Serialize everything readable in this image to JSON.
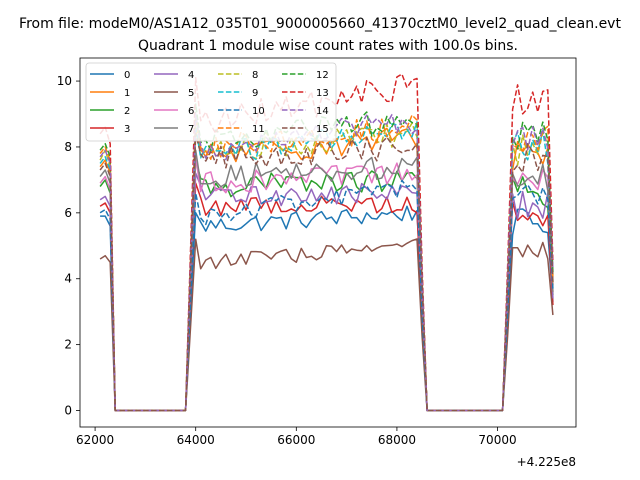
{
  "figure": {
    "suptitle": "From file: modeM0/AS1A12_035T01_9000005660_41370cztM0_level2_quad_clean.evt",
    "title": "Quadrant 1 module wise count rates with 100.0s bins.",
    "offset_text": "+4.225e8"
  },
  "chart_data": {
    "type": "line",
    "title": "Quadrant 1 module wise count rates with 100.0s bins.",
    "xlabel": "",
    "ylabel": "",
    "x_offset": 422500000,
    "xlim": [
      61700,
      71560
    ],
    "ylim": [
      -0.5,
      10.7
    ],
    "xticks": [
      62000,
      64000,
      66000,
      68000,
      70000
    ],
    "yticks": [
      0,
      2,
      4,
      6,
      8,
      10
    ],
    "grid": false,
    "legend": {
      "placement": "top-left",
      "columns": 4
    },
    "segments": [
      {
        "x0": 62100,
        "x1": 62300,
        "gap_to": 63800
      },
      {
        "x0": 63900,
        "x1": 68500,
        "gap_to": 70100
      },
      {
        "x0": 70200,
        "x1": 71100
      }
    ],
    "series": [
      {
        "name": "0",
        "color": "#1f77b4",
        "dash": false,
        "start": [
          5.9,
          5.9,
          5.6
        ],
        "mid": 5.6,
        "peak": 6.0,
        "end_level": 6.0,
        "tail": 3.3
      },
      {
        "name": "1",
        "color": "#ff7f0e",
        "dash": false,
        "start": [
          7.4,
          7.6,
          7.2
        ],
        "mid": 7.7,
        "peak": 8.5,
        "end_level": 8.3,
        "tail": 3.8
      },
      {
        "name": "2",
        "color": "#2ca02c",
        "dash": false,
        "start": [
          6.8,
          7.0,
          6.6
        ],
        "mid": 6.8,
        "peak": 7.6,
        "end_level": 7.0,
        "tail": 3.5
      },
      {
        "name": "3",
        "color": "#d62728",
        "dash": false,
        "start": [
          6.2,
          6.3,
          6.0
        ],
        "mid": 6.2,
        "peak": 6.9,
        "end_level": 6.3,
        "tail": 3.2
      },
      {
        "name": "4",
        "color": "#9467bd",
        "dash": false,
        "start": [
          6.4,
          6.5,
          6.2
        ],
        "mid": 6.5,
        "peak": 7.2,
        "end_level": 6.6,
        "tail": 3.4
      },
      {
        "name": "5",
        "color": "#8c564b",
        "dash": false,
        "start": [
          4.6,
          4.7,
          4.5
        ],
        "mid": 4.5,
        "peak": 5.2,
        "end_level": 5.0,
        "tail": 2.9
      },
      {
        "name": "6",
        "color": "#e377c2",
        "dash": false,
        "start": [
          6.9,
          7.1,
          6.7
        ],
        "mid": 6.9,
        "peak": 7.7,
        "end_level": 7.2,
        "tail": 3.6
      },
      {
        "name": "7",
        "color": "#7f7f7f",
        "dash": false,
        "start": [
          7.1,
          7.3,
          6.9
        ],
        "mid": 7.1,
        "peak": 7.9,
        "end_level": 7.4,
        "tail": 3.6
      },
      {
        "name": "8",
        "color": "#bcbd22",
        "dash": true,
        "start": [
          7.6,
          7.9,
          7.4
        ],
        "mid": 7.9,
        "peak": 8.8,
        "end_level": 8.4,
        "tail": 3.9
      },
      {
        "name": "9",
        "color": "#17becf",
        "dash": true,
        "start": [
          7.5,
          7.7,
          7.3
        ],
        "mid": 7.8,
        "peak": 8.6,
        "end_level": 8.5,
        "tail": 4.1
      },
      {
        "name": "10",
        "color": "#1f77b4",
        "dash": true,
        "start": [
          6.0,
          6.1,
          5.8
        ],
        "mid": 5.9,
        "peak": 6.6,
        "end_level": 6.8,
        "tail": 3.7
      },
      {
        "name": "11",
        "color": "#ff7f0e",
        "dash": true,
        "start": [
          7.8,
          8.0,
          7.6
        ],
        "mid": 8.0,
        "peak": 9.0,
        "end_level": 8.6,
        "tail": 4.0
      },
      {
        "name": "12",
        "color": "#2ca02c",
        "dash": true,
        "start": [
          7.9,
          8.1,
          7.7
        ],
        "mid": 8.1,
        "peak": 9.3,
        "end_level": 8.9,
        "tail": 4.2
      },
      {
        "name": "13",
        "color": "#d62728",
        "dash": true,
        "start": [
          8.4,
          8.6,
          8.1
        ],
        "mid": 8.7,
        "peak": 10.1,
        "end_level": 9.9,
        "tail": 4.5
      },
      {
        "name": "14",
        "color": "#9467bd",
        "dash": true,
        "start": [
          7.7,
          7.9,
          7.5
        ],
        "mid": 7.9,
        "peak": 9.0,
        "end_level": 8.8,
        "tail": 4.3
      },
      {
        "name": "15",
        "color": "#8c564b",
        "dash": true,
        "start": [
          7.3,
          7.5,
          7.1
        ],
        "mid": 7.6,
        "peak": 8.4,
        "end_level": 8.0,
        "tail": 3.9
      }
    ]
  }
}
